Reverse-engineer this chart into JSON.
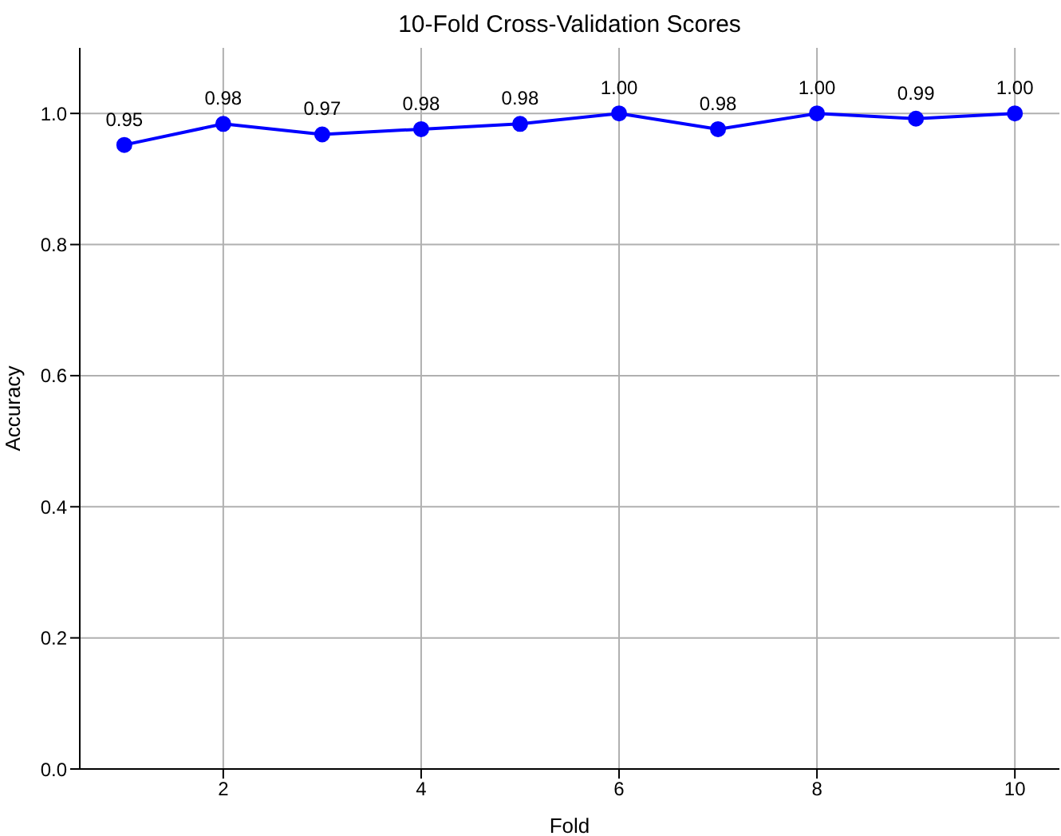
{
  "chart_data": {
    "type": "line",
    "title": "10-Fold Cross-Validation Scores",
    "xlabel": "Fold",
    "ylabel": "Accuracy",
    "x": [
      1,
      2,
      3,
      4,
      5,
      6,
      7,
      8,
      9,
      10
    ],
    "series": [
      {
        "color": "#0000ff",
        "values": [
          0.952,
          0.984,
          0.968,
          0.976,
          0.984,
          1.0,
          0.976,
          1.0,
          0.992,
          1.0
        ],
        "value_labels": [
          "0.95",
          "0.98",
          "0.97",
          "0.98",
          "0.98",
          "1.00",
          "0.98",
          "1.00",
          "0.99",
          "1.00"
        ]
      }
    ],
    "xlim": [
      0.55,
      10.45
    ],
    "xticks": [
      2,
      4,
      6,
      8,
      10
    ],
    "ylim": [
      0,
      1.1
    ],
    "yticks": [
      {
        "value": 0,
        "label": "0.0"
      },
      0.2,
      0.4,
      0.6,
      0.8,
      {
        "value": 1,
        "label": "1.0"
      }
    ],
    "grid": true,
    "marker": "circle",
    "line_style": "solid"
  }
}
